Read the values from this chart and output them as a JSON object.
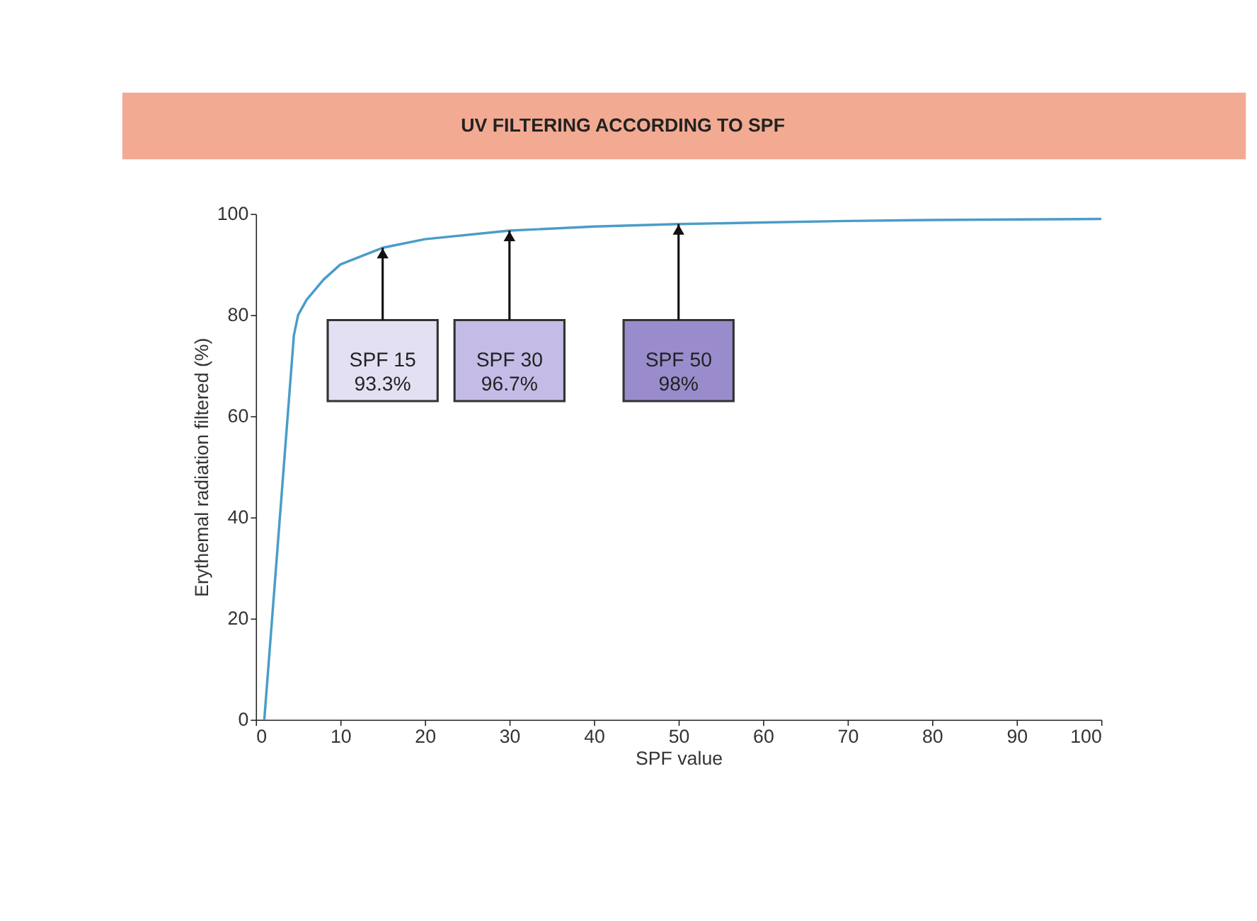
{
  "chart_data": {
    "type": "line",
    "title": "UV FILTERING ACCORDING TO SPF",
    "xlabel": "SPF value",
    "ylabel": "Erythemal radiation filtered (%)",
    "x": [
      1,
      4.5,
      5,
      6,
      8,
      10,
      15,
      20,
      30,
      40,
      50,
      60,
      70,
      80,
      90,
      100
    ],
    "series": [
      {
        "color": "#4a9cc8",
        "values": [
          0,
          76,
          80,
          83,
          87,
          90,
          93.3,
          95,
          96.7,
          97.5,
          98,
          98.3,
          98.6,
          98.8,
          98.9,
          99
        ]
      }
    ],
    "xlim": [
      0,
      100
    ],
    "xticks": [
      0,
      10,
      20,
      30,
      40,
      50,
      60,
      70,
      80,
      90,
      100
    ],
    "ylim": [
      0,
      100
    ],
    "yticks": [
      0,
      20,
      40,
      60,
      80,
      100
    ],
    "grid": false,
    "marker": "none",
    "line_style": "solid",
    "legend": false,
    "annotations": [
      "SPF 15\n93.3%",
      "SPF 30\n96.7%",
      "SPF 50\n98%"
    ]
  }
}
